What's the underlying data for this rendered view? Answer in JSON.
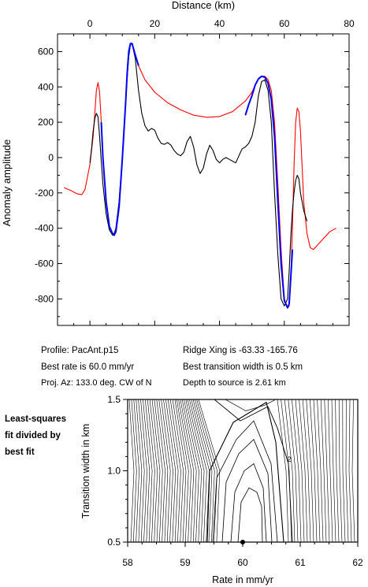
{
  "profile_chart": {
    "type": "line",
    "xlabel": "Distance (km)",
    "ylabel": "Anomaly amplitude",
    "x_ticks": [
      "0",
      "20",
      "40",
      "60",
      "80"
    ],
    "y_ticks": [
      "600",
      "400",
      "200",
      "0",
      "-200",
      "-400",
      "-600",
      "-800"
    ],
    "xlim": [
      -10,
      80
    ],
    "ylim": [
      -950,
      700
    ],
    "series": [
      {
        "color": "#ff0000",
        "x": [
          -8,
          -6,
          -4,
          -2.5,
          -1.5,
          0,
          1,
          1.5,
          2,
          2.5,
          3,
          3.5,
          4,
          5,
          6,
          7,
          7.5,
          8,
          9,
          10,
          11,
          11.5,
          12,
          12.5,
          13,
          14,
          15,
          17,
          20,
          24,
          28,
          32,
          36,
          40,
          44,
          48,
          50,
          51,
          52,
          53,
          54,
          55,
          56,
          57,
          58,
          59,
          60,
          61,
          61.5,
          62,
          62.5,
          63,
          63.5,
          64,
          64.5,
          65,
          65.5,
          66,
          67,
          68,
          69,
          70,
          72,
          74,
          76
        ],
        "y": [
          -170,
          -185,
          -205,
          -210,
          -180,
          -40,
          120,
          250,
          380,
          425,
          370,
          200,
          0,
          -250,
          -390,
          -430,
          -440,
          -420,
          -280,
          -10,
          300,
          480,
          600,
          645,
          645,
          580,
          520,
          440,
          370,
          310,
          270,
          240,
          228,
          232,
          260,
          320,
          370,
          410,
          445,
          460,
          460,
          440,
          380,
          200,
          -150,
          -520,
          -800,
          -850,
          -840,
          -700,
          -400,
          -50,
          200,
          280,
          260,
          150,
          -50,
          -250,
          -430,
          -510,
          -520,
          -500,
          -460,
          -420,
          -400
        ],
        "values": []
      },
      {
        "color": "#000000",
        "x": [
          0,
          0.5,
          1,
          1.5,
          2,
          2.5,
          3,
          3.5,
          4,
          5,
          6,
          7,
          7.5,
          8,
          9,
          10,
          11,
          11.5,
          12,
          12.5,
          13,
          14,
          15,
          16,
          17,
          18,
          19,
          20,
          21,
          22,
          23,
          24,
          25,
          26,
          27,
          28,
          29,
          30,
          31,
          32,
          33,
          34,
          35,
          36,
          37,
          38,
          39,
          40,
          41,
          42,
          43,
          44,
          45,
          46,
          47,
          48,
          49,
          50,
          51,
          52,
          53,
          54,
          55,
          56,
          57,
          58,
          59,
          60,
          61,
          61.5,
          62,
          62.5,
          63,
          63.5,
          64,
          64.5,
          65,
          66,
          67
        ],
        "y": [
          -30,
          50,
          150,
          220,
          250,
          230,
          120,
          -20,
          -150,
          -320,
          -410,
          -440,
          -430,
          -400,
          -250,
          0,
          300,
          450,
          570,
          640,
          645,
          560,
          380,
          250,
          180,
          150,
          165,
          155,
          110,
          80,
          75,
          85,
          70,
          40,
          20,
          10,
          30,
          90,
          120,
          60,
          -40,
          -90,
          -60,
          20,
          70,
          40,
          -10,
          -30,
          -10,
          0,
          -10,
          -20,
          -30,
          10,
          50,
          60,
          80,
          120,
          200,
          350,
          430,
          440,
          380,
          200,
          -200,
          -550,
          -800,
          -840,
          -800,
          -650,
          -450,
          -300,
          -200,
          -130,
          -100,
          -120,
          -200,
          -300,
          -360
        ],
        "values": []
      },
      {
        "color": "#0000ff",
        "x": [
          3.5,
          4,
          5,
          6,
          7,
          7.5,
          8,
          9,
          10,
          11,
          11.5,
          12,
          12.5,
          13,
          14,
          15
        ],
        "y": [
          200,
          0,
          -250,
          -390,
          -430,
          -440,
          -420,
          -280,
          -10,
          300,
          480,
          600,
          645,
          645,
          580,
          520
        ],
        "values": []
      },
      {
        "color": "#0000ff",
        "x": [
          48,
          49,
          50,
          51,
          52,
          53,
          54,
          55,
          56,
          57,
          58,
          59,
          60,
          61,
          61.5,
          62,
          62.5
        ],
        "y": [
          240,
          300,
          350,
          410,
          445,
          460,
          455,
          420,
          330,
          120,
          -250,
          -600,
          -810,
          -850,
          -830,
          -680,
          -520
        ],
        "values": []
      }
    ]
  },
  "info": {
    "profile": "Profile: PacAnt.p15",
    "rate": "Best rate is 60.0 mm/yr",
    "azimuth": "Proj. Az: 133.0 deg. CW of N",
    "ridge": "Ridge Xing is -63.33 -165.76",
    "width": "Best transition width is 0.5 km",
    "depth": "Depth to source is   2.61 km"
  },
  "contour_chart": {
    "type": "contour",
    "side_label": [
      "Least-squares",
      "fit divided by",
      "best fit"
    ],
    "xlabel": "Rate in mm/yr",
    "ylabel": "Transition width in km",
    "x_ticks": [
      "58",
      "59",
      "60",
      "61",
      "62"
    ],
    "y_ticks": [
      "0.5",
      "1.0",
      "1.5"
    ],
    "xlim": [
      58,
      62
    ],
    "ylim": [
      0.5,
      1.5
    ],
    "contour_label": "2",
    "best_fit": {
      "rate": 60.0,
      "width": 0.5
    }
  }
}
